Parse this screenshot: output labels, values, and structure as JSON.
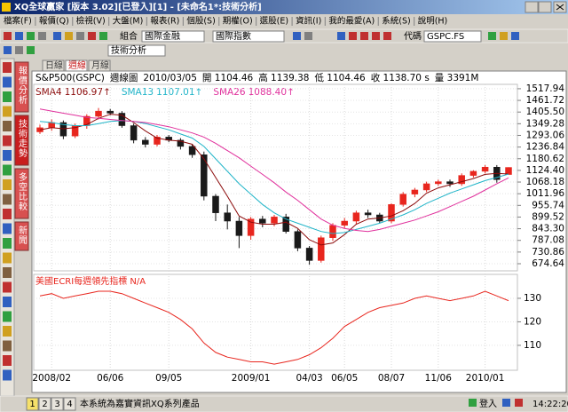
{
  "window": {
    "title": "XQ全球贏家 [版本 3.02][已登入][1] - [未命名1*:技術分析]",
    "menu": [
      "檔案(F)",
      "報價(Q)",
      "檢視(V)",
      "大盤(M)",
      "報表(R)",
      "個股(S)",
      "期權(O)",
      "選股(E)",
      "資訊(I)",
      "我的最愛(A)",
      "系統(S)",
      "說明(H)"
    ],
    "toolbar": {
      "group_label": "組合",
      "group": "國際金融",
      "list": "國際指數",
      "code_label": "代碼",
      "code": "GSPC.FS",
      "view": "技術分析"
    }
  },
  "side_tabs": [
    "報價分析",
    "技術走勢",
    "多空比較",
    "新聞"
  ],
  "chart": {
    "tabs": [
      "日線",
      "週線",
      "月線"
    ],
    "header": [
      "S&P500(GSPC)",
      "週線圖",
      "2010/03/05",
      "開 1104.46",
      "高 1139.38",
      "低 1104.46",
      "收 1138.70 s",
      "量 3391M"
    ],
    "ylim": [
      649,
      1539
    ],
    "yticks": [
      1517.94,
      1461.72,
      {
        "value": 1405.5,
        "label": "1405.50"
      },
      1349.28,
      1293.06,
      1236.84,
      1180.62,
      {
        "value": 1124.4,
        "label": "1124.40"
      },
      1068.18,
      1011.96,
      955.74,
      899.52,
      {
        "value": 843.3,
        "label": "843.30"
      },
      787.08,
      730.86,
      674.64
    ],
    "x_labels": [
      null,
      "2008/02",
      null,
      null,
      null,
      null,
      "06/06",
      null,
      null,
      null,
      null,
      "09/05",
      null,
      null,
      null,
      null,
      null,
      null,
      "2009/01",
      null,
      null,
      null,
      null,
      "04/03",
      null,
      null,
      "06/05",
      null,
      null,
      null,
      "08/07",
      null,
      null,
      null,
      "11/06",
      null,
      null,
      null,
      "2010/01",
      null,
      null
    ],
    "candles": {
      "up_color": "#e8261e",
      "down_color": "#1a1a1a",
      "open": [
        1310,
        1330,
        1355,
        1290,
        1340,
        1385,
        1410,
        1400,
        1340,
        1270,
        1250,
        1285,
        1270,
        1240,
        1200,
        1000,
        920,
        880,
        810,
        890,
        870,
        900,
        830,
        750,
        690,
        800,
        860,
        880,
        920,
        910,
        880,
        960,
        1010,
        1030,
        1060,
        1070,
        1060,
        1100,
        1120,
        1140,
        1104.46
      ],
      "high": [
        1345,
        1370,
        1365,
        1350,
        1395,
        1425,
        1420,
        1410,
        1350,
        1285,
        1295,
        1295,
        1280,
        1250,
        1215,
        1010,
        960,
        900,
        900,
        905,
        910,
        915,
        840,
        760,
        810,
        870,
        895,
        930,
        935,
        920,
        965,
        1020,
        1040,
        1070,
        1080,
        1080,
        1110,
        1125,
        1150,
        1150,
        1139.38
      ],
      "low": [
        1300,
        1315,
        1275,
        1280,
        1325,
        1370,
        1390,
        1330,
        1255,
        1235,
        1240,
        1260,
        1225,
        1185,
        980,
        880,
        840,
        750,
        790,
        850,
        855,
        820,
        735,
        670,
        680,
        785,
        845,
        865,
        895,
        870,
        870,
        950,
        995,
        1020,
        1050,
        1045,
        1050,
        1090,
        1110,
        1065,
        1104.46
      ],
      "close": [
        1330,
        1355,
        1290,
        1340,
        1385,
        1410,
        1400,
        1340,
        1270,
        1250,
        1285,
        1270,
        1240,
        1200,
        1000,
        920,
        880,
        810,
        890,
        870,
        900,
        830,
        750,
        690,
        800,
        860,
        880,
        920,
        910,
        880,
        960,
        1010,
        1030,
        1060,
        1070,
        1060,
        1100,
        1120,
        1140,
        1080,
        1138.7
      ]
    },
    "sma": [
      {
        "name": "SMA4",
        "label": "1106.97↑",
        "color": "#8b0a0a",
        "values": [
          1320,
          1330,
          1325,
          1330,
          1345,
          1375,
          1395,
          1390,
          1355,
          1315,
          1280,
          1270,
          1265,
          1250,
          1180,
          1090,
          1000,
          905,
          875,
          865,
          865,
          875,
          845,
          790,
          765,
          775,
          815,
          865,
          890,
          895,
          905,
          930,
          965,
          1015,
          1040,
          1055,
          1070,
          1085,
          1105,
          1110,
          1106.97
        ]
      },
      {
        "name": "SMA13",
        "label": "1107.01↑",
        "color": "#1fb4c8",
        "values": [
          1360,
          1355,
          1345,
          1340,
          1340,
          1350,
          1360,
          1365,
          1360,
          1350,
          1335,
          1320,
          1300,
          1280,
          1240,
          1180,
          1120,
          1060,
          1010,
          960,
          920,
          890,
          870,
          850,
          830,
          820,
          825,
          840,
          855,
          870,
          890,
          910,
          935,
          965,
          990,
          1015,
          1035,
          1055,
          1075,
          1090,
          1107.01
        ]
      },
      {
        "name": "SMA26",
        "label": "1088.40↑",
        "color": "#e0309c",
        "values": [
          1420,
          1410,
          1400,
          1390,
          1380,
          1375,
          1370,
          1365,
          1360,
          1355,
          1345,
          1335,
          1320,
          1305,
          1285,
          1255,
          1220,
          1185,
          1145,
          1105,
          1065,
          1020,
          980,
          935,
          890,
          860,
          845,
          835,
          830,
          840,
          855,
          870,
          885,
          905,
          925,
          950,
          975,
          1000,
          1030,
          1060,
          1088.4
        ]
      }
    ],
    "lower": {
      "title": "美國ECRI每週領先指標 N/A",
      "color": "#e8261e",
      "ylim": [
        99.4,
        139.8
      ],
      "yticks": [
        130,
        120,
        110
      ],
      "values": [
        131,
        132,
        130,
        131,
        132,
        133,
        133,
        132,
        130,
        128,
        126,
        124,
        121,
        117,
        111,
        107,
        105,
        104,
        103,
        103,
        102,
        103,
        104,
        106,
        109,
        113,
        118,
        121,
        124,
        126,
        127,
        128,
        130,
        131,
        130,
        129,
        130,
        131,
        133,
        131,
        129
      ]
    }
  },
  "status": {
    "tabs": [
      "1",
      "2",
      "3",
      "4"
    ],
    "product": "本系統為嘉實資訊XQ系列產品",
    "login": "登入",
    "time": "14:22:20"
  }
}
